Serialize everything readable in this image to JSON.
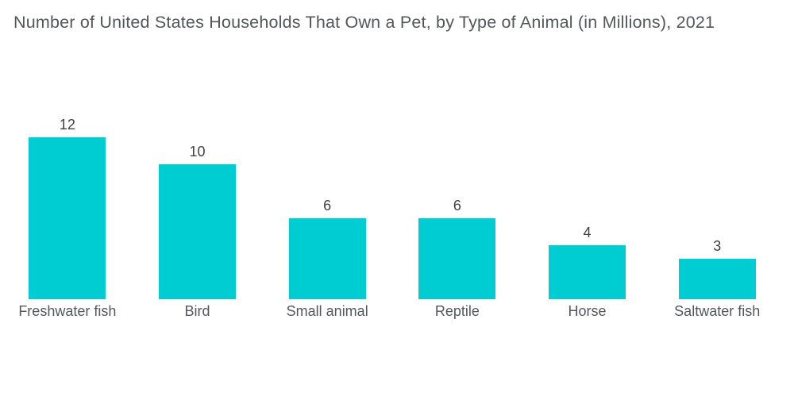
{
  "title": "Number of United States Households That Own a Pet, by Type of Animal (in Millions), 2021",
  "chart_data": {
    "type": "bar",
    "title": "Number of United States Households That Own a Pet, by Type of Animal (in Millions), 2021",
    "categories": [
      "Freshwater fish",
      "Bird",
      "Small animal",
      "Reptile",
      "Horse",
      "Saltwater fish"
    ],
    "values": [
      12,
      10,
      6,
      6,
      4,
      3
    ],
    "xlabel": "",
    "ylabel": "",
    "ylim": [
      0,
      12
    ],
    "grid": false,
    "legend_position": "none",
    "data_labels": true,
    "bar_color": "#00CDD2"
  },
  "colors": {
    "bar": "#00CDD2",
    "title_text": "#54565B",
    "value_text": "#3F4145",
    "category_text": "#55575C",
    "background": "#FFFFFF"
  }
}
